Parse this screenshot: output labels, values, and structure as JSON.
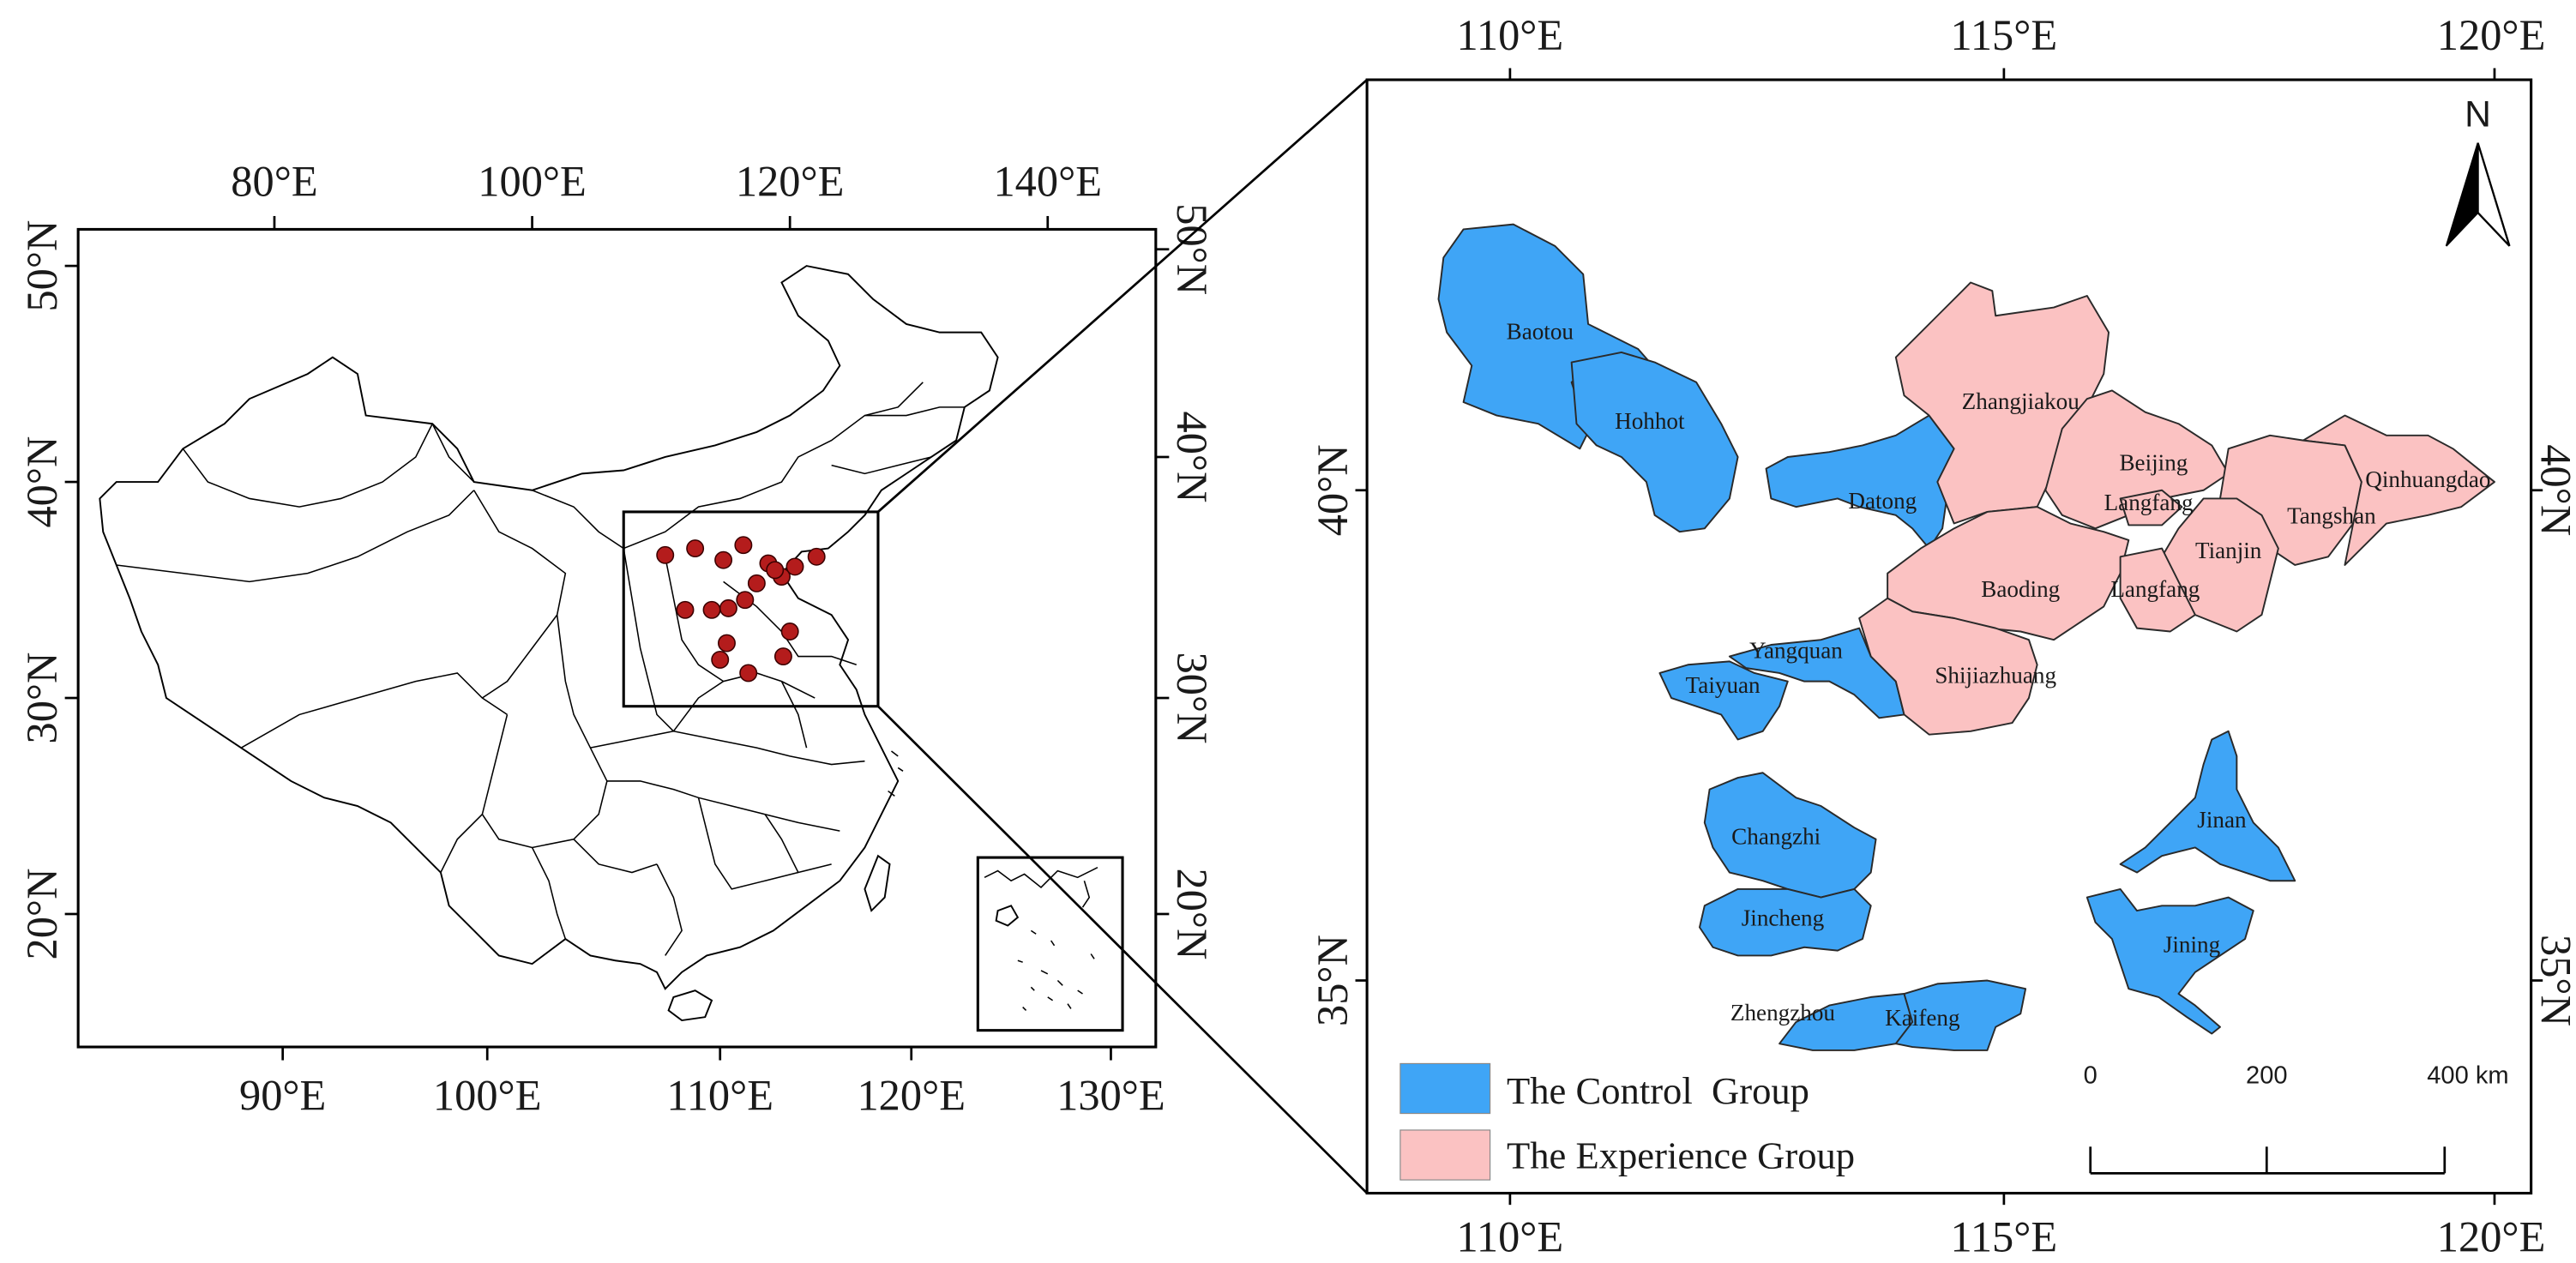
{
  "left_map": {
    "top_axis": [
      "80°E",
      "100°E",
      "120°E",
      "140°E"
    ],
    "bottom_axis": [
      "90°E",
      "100°E",
      "110°E",
      "120°E",
      "130°E"
    ],
    "left_axis": [
      "50°N",
      "40°N",
      "30°N",
      "20°N"
    ],
    "right_axis": [
      "50°N",
      "40°N",
      "30°N",
      "20°N"
    ]
  },
  "right_map": {
    "top_axis": [
      "110°E",
      "115°E",
      "120°E"
    ],
    "bottom_axis": [
      "110°E",
      "115°E",
      "120°E"
    ],
    "left_axis": [
      "40°N",
      "35°N"
    ],
    "right_axis": [
      "40°N",
      "35°N"
    ],
    "north_arrow": "N",
    "control_group_cities": [
      "Baotou",
      "Hohhot",
      "Datong",
      "Yangquan",
      "Taiyuan",
      "Changzhi",
      "Jincheng",
      "Zhengzhou",
      "Kaifeng",
      "Jinan",
      "Jining"
    ],
    "experience_group_cities": [
      "Zhangjiakou",
      "Beijing",
      "Langfang",
      "Qinhuangdao",
      "Tangshan",
      "Tianjin",
      "Baoding",
      "Langfang",
      "Shijiazhuang"
    ]
  },
  "legend": {
    "control": {
      "label": "The Control  Group",
      "color": "#3fa5f6"
    },
    "experience": {
      "label": "The Experience Group",
      "color": "#fbc2c2"
    }
  },
  "scale_bar": {
    "labels": [
      "0",
      "200",
      "400 km"
    ]
  },
  "colors": {
    "study_points": "#b41c1c"
  }
}
